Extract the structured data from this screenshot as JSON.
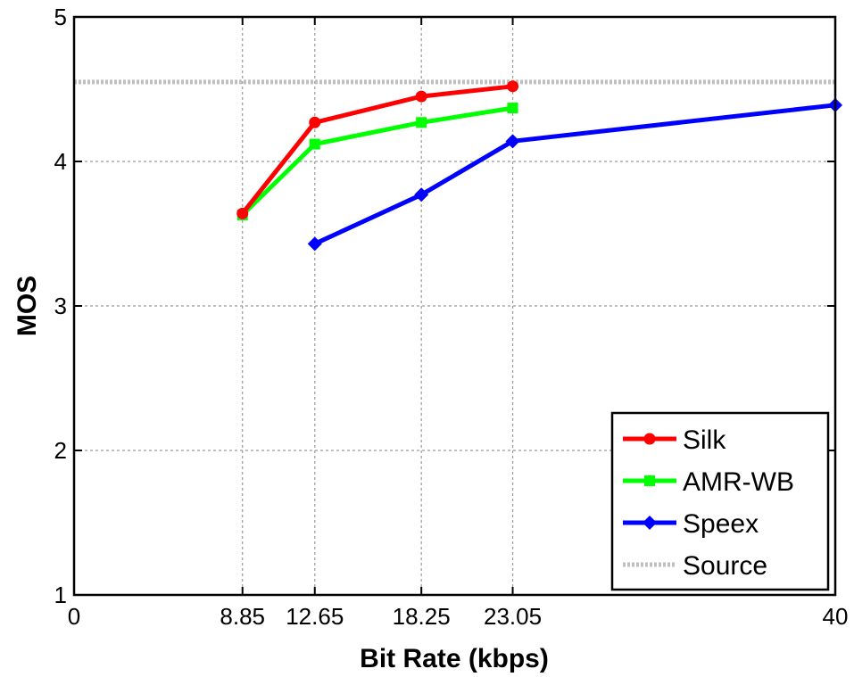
{
  "chart_data": {
    "type": "line",
    "title": "",
    "xlabel": "Bit Rate (kbps)",
    "ylabel": "MOS",
    "xlim": [
      0,
      40
    ],
    "ylim": [
      1,
      5
    ],
    "x_ticks": [
      0,
      8.85,
      12.65,
      18.25,
      23.05,
      40
    ],
    "x_tick_labels": [
      "0",
      "8.85",
      "12.65",
      "18.25",
      "23.05",
      "40"
    ],
    "y_ticks": [
      1,
      2,
      3,
      4,
      5
    ],
    "y_tick_labels": [
      "1",
      "2",
      "3",
      "4",
      "5"
    ],
    "grid": true,
    "legend_position": "bottom-right",
    "series": [
      {
        "name": "Silk",
        "color": "#ff0000",
        "marker": "circle",
        "x": [
          8.85,
          12.65,
          18.25,
          23.05
        ],
        "y": [
          3.64,
          4.27,
          4.45,
          4.52
        ]
      },
      {
        "name": "AMR-WB",
        "color": "#00ff00",
        "marker": "square",
        "x": [
          8.85,
          12.65,
          18.25,
          23.05
        ],
        "y": [
          3.63,
          4.12,
          4.27,
          4.37
        ]
      },
      {
        "name": "Speex",
        "color": "#0000ff",
        "marker": "diamond",
        "x": [
          12.65,
          18.25,
          23.05,
          40
        ],
        "y": [
          3.43,
          3.77,
          4.14,
          4.39
        ]
      },
      {
        "name": "Source",
        "color": "#bfbfbf",
        "marker": "none",
        "dashed": true,
        "x": [
          0,
          40
        ],
        "y": [
          4.55,
          4.55
        ]
      }
    ]
  }
}
